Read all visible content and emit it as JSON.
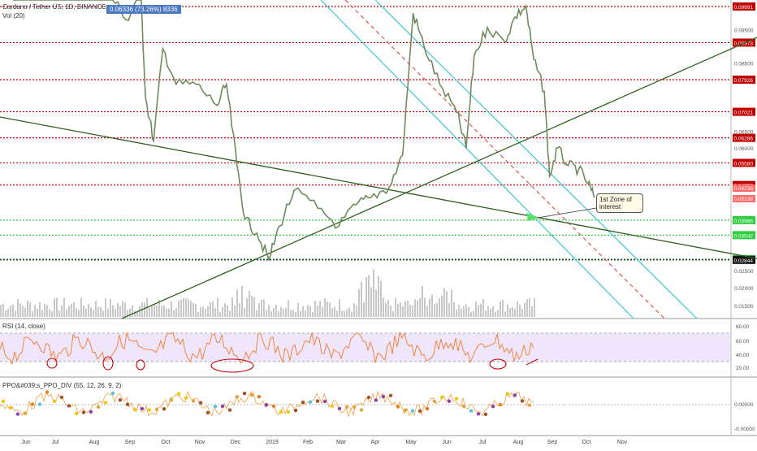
{
  "legend": {
    "symbol": "Cardano / Tether US, 1D, BINANCE",
    "badge": "0.06336 (73.26%) 8336",
    "vol": "Vol (20)",
    "rsi": "RSI (14, close)",
    "ppo": "PPO&#039;s_PPO_DIV (55, 12, 26, 9, 2)"
  },
  "annotation": {
    "line1": "1st Zone of",
    "line2": "interest"
  },
  "chart_data": [
    {
      "type": "line",
      "title": "Cardano / Tether US",
      "x_labels": [
        "Jun",
        "Jul",
        "Aug",
        "Sep",
        "Oct",
        "Nov",
        "Dec",
        "2019",
        "Feb",
        "Mar",
        "Apr",
        "May",
        "Jun",
        "Jul",
        "Aug",
        "Sep",
        "Oct",
        "Nov"
      ],
      "price_ticks": [
        "0.09500",
        "0.08500",
        "0.06500",
        "0.06000",
        "0.04500",
        "0.02500",
        "0.02000",
        "0.01500"
      ],
      "levels": [
        {
          "label": "0.09991",
          "value": 0.09991,
          "color": "#c00000"
        },
        {
          "label": "0.08973",
          "value": 0.08973,
          "color": "#c00000"
        },
        {
          "label": "0.07926",
          "value": 0.07926,
          "color": "#c00000"
        },
        {
          "label": "0.07021",
          "value": 0.07021,
          "color": "#c00000"
        },
        {
          "label": "0.06286",
          "value": 0.06286,
          "color": "#c00000"
        },
        {
          "label": "0.05580",
          "value": 0.0558,
          "color": "#c00000"
        },
        {
          "label": "0.04956",
          "value": 0.04956,
          "color": "#c00000"
        },
        {
          "label": "0.03966",
          "value": 0.03966,
          "color": "#2ecc40"
        },
        {
          "label": "0.03542",
          "value": 0.03542,
          "color": "#2ecc40"
        },
        {
          "label": "0.02867",
          "value": 0.02867,
          "color": "#2ecc40"
        },
        {
          "label": "0.02844",
          "value": 0.02844,
          "color": "#111111"
        }
      ],
      "current_price": {
        "labels": [
          "0.04738",
          "0.05138"
        ],
        "color": "#ff6b6b"
      },
      "price_series": [
        [
          "2018-06-01",
          0.131
        ],
        [
          "2018-06-20",
          0.114
        ],
        [
          "2018-07-05",
          0.138
        ],
        [
          "2018-07-25",
          0.126
        ],
        [
          "2018-08-10",
          0.115
        ],
        [
          "2018-08-18",
          0.102
        ],
        [
          "2018-08-30",
          0.096
        ],
        [
          "2018-09-08",
          0.106
        ],
        [
          "2018-09-12",
          0.074
        ],
        [
          "2018-09-18",
          0.062
        ],
        [
          "2018-09-25",
          0.088
        ],
        [
          "2018-10-05",
          0.078
        ],
        [
          "2018-10-20",
          0.078
        ],
        [
          "2018-11-05",
          0.072
        ],
        [
          "2018-11-12",
          0.078
        ],
        [
          "2018-11-20",
          0.055
        ],
        [
          "2018-11-26",
          0.04
        ],
        [
          "2018-12-05",
          0.036
        ],
        [
          "2018-12-14",
          0.0285
        ],
        [
          "2018-12-22",
          0.038
        ],
        [
          "2019-01-02",
          0.048
        ],
        [
          "2019-01-20",
          0.043
        ],
        [
          "2019-02-05",
          0.038
        ],
        [
          "2019-02-18",
          0.044
        ],
        [
          "2019-03-01",
          0.046
        ],
        [
          "2019-03-15",
          0.049
        ],
        [
          "2019-03-25",
          0.058
        ],
        [
          "2019-04-02",
          0.098
        ],
        [
          "2019-04-10",
          0.089
        ],
        [
          "2019-04-22",
          0.078
        ],
        [
          "2019-05-05",
          0.07
        ],
        [
          "2019-05-12",
          0.06
        ],
        [
          "2019-05-18",
          0.086
        ],
        [
          "2019-05-28",
          0.094
        ],
        [
          "2019-06-10",
          0.09
        ],
        [
          "2019-06-18",
          0.097
        ],
        [
          "2019-06-26",
          0.1
        ],
        [
          "2019-07-02",
          0.085
        ],
        [
          "2019-07-10",
          0.076
        ],
        [
          "2019-07-14",
          0.052
        ],
        [
          "2019-07-20",
          0.06
        ],
        [
          "2019-07-28",
          0.055
        ],
        [
          "2019-08-05",
          0.054
        ],
        [
          "2019-08-12",
          0.05
        ],
        [
          "2019-08-17",
          0.046
        ]
      ],
      "rsi_ticks": [
        "80.00",
        "60.00",
        "40.00",
        "20.00"
      ],
      "ppo_ticks": [
        "0.00000",
        "-0.00000"
      ]
    }
  ]
}
